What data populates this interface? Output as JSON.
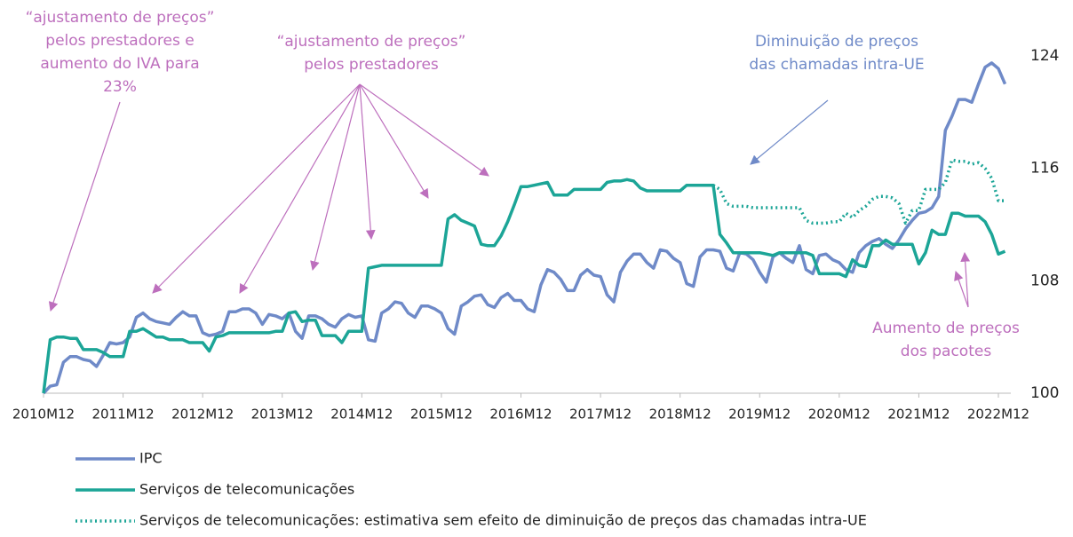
{
  "chart_data": {
    "type": "line",
    "categories": [
      "2010M12",
      null,
      null,
      null,
      null,
      null,
      null,
      null,
      null,
      null,
      null,
      null,
      "2011M12",
      null,
      null,
      null,
      null,
      null,
      null,
      null,
      null,
      null,
      null,
      null,
      "2012M12",
      null,
      null,
      null,
      null,
      null,
      null,
      null,
      null,
      null,
      null,
      null,
      "2013M12",
      null,
      null,
      null,
      null,
      null,
      null,
      null,
      null,
      null,
      null,
      null,
      "2014M12",
      null,
      null,
      null,
      null,
      null,
      null,
      null,
      null,
      null,
      null,
      null,
      "2015M12",
      null,
      null,
      null,
      null,
      null,
      null,
      null,
      null,
      null,
      null,
      null,
      "2016M12",
      null,
      null,
      null,
      null,
      null,
      null,
      null,
      null,
      null,
      null,
      null,
      "2017M12",
      null,
      null,
      null,
      null,
      null,
      null,
      null,
      null,
      null,
      null,
      null,
      "2018M12",
      null,
      null,
      null,
      null,
      null,
      null,
      null,
      null,
      null,
      null,
      null,
      "2019M12",
      null,
      null,
      null,
      null,
      null,
      null,
      null,
      null,
      null,
      null,
      null,
      "2020M12",
      null,
      null,
      null,
      null,
      null,
      null,
      null,
      null,
      null,
      null,
      null,
      "2021M12",
      null,
      null,
      null,
      null,
      null,
      null,
      null,
      null,
      null,
      null,
      null,
      "2022M12",
      null
    ],
    "series": [
      {
        "name": "IPC",
        "color": "#6f8ac8",
        "style": "solid",
        "values": [
          100,
          100.5,
          100.6,
          102.2,
          102.6,
          102.6,
          102.4,
          102.3,
          101.9,
          102.7,
          103.6,
          103.5,
          103.6,
          104.0,
          105.4,
          105.7,
          105.3,
          105.1,
          105.0,
          104.9,
          105.4,
          105.8,
          105.5,
          105.5,
          104.3,
          104.1,
          104.2,
          104.4,
          105.8,
          105.8,
          106.0,
          106.0,
          105.7,
          104.9,
          105.6,
          105.5,
          105.3,
          105.7,
          104.4,
          103.9,
          105.5,
          105.5,
          105.3,
          104.9,
          104.7,
          105.3,
          105.6,
          105.4,
          105.5,
          103.8,
          103.7,
          105.7,
          106.0,
          106.5,
          106.4,
          105.7,
          105.4,
          106.2,
          106.2,
          106.0,
          105.7,
          104.6,
          104.2,
          106.2,
          106.5,
          106.9,
          107.0,
          106.3,
          106.1,
          106.8,
          107.1,
          106.6,
          106.6,
          106.0,
          105.8,
          107.7,
          108.8,
          108.6,
          108.1,
          107.3,
          107.3,
          108.4,
          108.8,
          108.4,
          108.3,
          107.0,
          106.5,
          108.6,
          109.4,
          109.9,
          109.9,
          109.3,
          108.9,
          110.2,
          110.1,
          109.6,
          109.3,
          107.8,
          107.6,
          109.7,
          110.2,
          110.2,
          110.1,
          108.9,
          108.7,
          110.0,
          109.9,
          109.5,
          108.6,
          107.9,
          109.7,
          110.0,
          109.6,
          109.3,
          110.5,
          108.8,
          108.5,
          109.8,
          109.9,
          109.5,
          109.3,
          108.8,
          108.6,
          110.0,
          110.5,
          110.8,
          111.0,
          110.6,
          110.3,
          110.9,
          111.7,
          112.3,
          112.8,
          112.9,
          113.2,
          114.0,
          118.7,
          119.7,
          120.9,
          120.9,
          120.7,
          122.0,
          123.2,
          123.5,
          123.1,
          122.0
        ]
      },
      {
        "name": "Serviços de telecomunicações",
        "color": "#1ca597",
        "style": "solid",
        "values": [
          100,
          103.8,
          104.0,
          104.0,
          103.9,
          103.9,
          103.1,
          103.1,
          103.1,
          102.9,
          102.6,
          102.6,
          102.6,
          104.4,
          104.4,
          104.6,
          104.3,
          104.0,
          104.0,
          103.8,
          103.8,
          103.8,
          103.6,
          103.6,
          103.6,
          103.0,
          104.0,
          104.1,
          104.3,
          104.3,
          104.3,
          104.3,
          104.3,
          104.3,
          104.3,
          104.4,
          104.4,
          105.7,
          105.8,
          105.1,
          105.2,
          105.2,
          104.1,
          104.1,
          104.1,
          103.6,
          104.4,
          104.4,
          104.4,
          108.9,
          109.0,
          109.1,
          109.1,
          109.1,
          109.1,
          109.1,
          109.1,
          109.1,
          109.1,
          109.1,
          109.1,
          112.4,
          112.7,
          112.3,
          112.1,
          111.9,
          110.6,
          110.5,
          110.5,
          111.2,
          112.2,
          113.4,
          114.7,
          114.7,
          114.8,
          114.9,
          115.0,
          114.1,
          114.1,
          114.1,
          114.5,
          114.5,
          114.5,
          114.5,
          114.5,
          115.0,
          115.1,
          115.1,
          115.2,
          115.1,
          114.6,
          114.4,
          114.4,
          114.4,
          114.4,
          114.4,
          114.4,
          114.8,
          114.8,
          114.8,
          114.8,
          114.8,
          111.3,
          110.7,
          110.0,
          110.0,
          110.0,
          110.0,
          110.0,
          109.9,
          109.8,
          110.0,
          110.0,
          110.0,
          110.0,
          110.0,
          109.8,
          108.5,
          108.5,
          108.5,
          108.5,
          108.3,
          109.5,
          109.1,
          109.0,
          110.5,
          110.5,
          110.9,
          110.6,
          110.6,
          110.6,
          110.6,
          109.2,
          110.0,
          111.6,
          111.3,
          111.3,
          112.8,
          112.8,
          112.6,
          112.6,
          112.6,
          112.2,
          111.3,
          109.9,
          110.1
        ]
      },
      {
        "name": "Serviços de telecomunicações: estimativa sem efeito de diminuição de preços das chamadas intra-UE",
        "color": "#1ca597",
        "style": "dotted",
        "values": [
          null,
          null,
          null,
          null,
          null,
          null,
          null,
          null,
          null,
          null,
          null,
          null,
          null,
          null,
          null,
          null,
          null,
          null,
          null,
          null,
          null,
          null,
          null,
          null,
          null,
          null,
          null,
          null,
          null,
          null,
          null,
          null,
          null,
          null,
          null,
          null,
          null,
          null,
          null,
          null,
          null,
          null,
          null,
          null,
          null,
          null,
          null,
          null,
          null,
          null,
          null,
          null,
          null,
          null,
          null,
          null,
          null,
          null,
          null,
          null,
          null,
          null,
          null,
          null,
          null,
          null,
          null,
          null,
          null,
          null,
          null,
          null,
          null,
          null,
          null,
          null,
          null,
          null,
          null,
          null,
          null,
          null,
          null,
          null,
          null,
          null,
          null,
          null,
          null,
          null,
          null,
          null,
          null,
          null,
          null,
          null,
          null,
          null,
          null,
          null,
          null,
          114.8,
          114.5,
          113.5,
          113.3,
          113.3,
          113.3,
          113.2,
          113.2,
          113.2,
          113.2,
          113.2,
          113.2,
          113.2,
          113.2,
          112.3,
          112.1,
          112.1,
          112.1,
          112.2,
          112.2,
          112.8,
          112.5,
          113.0,
          113.3,
          113.8,
          114.0,
          114.0,
          113.9,
          113.5,
          112.1,
          113.0,
          113.0,
          114.5,
          114.5,
          114.5,
          115.0,
          116.6,
          116.5,
          116.5,
          116.3,
          116.4,
          116.0,
          115.3,
          113.7,
          113.7
        ]
      }
    ],
    "ylim": [
      100,
      124
    ],
    "yticks": [
      100,
      108,
      116,
      124
    ],
    "y_axis_side": "right",
    "grid": false,
    "annotations": [
      {
        "lines": [
          "“ajustamento de preços”",
          "pelos prestadores e",
          "aumento do IVA para",
          "23%"
        ],
        "color": "#bd6fbd"
      },
      {
        "lines": [
          "“ajustamento de preços”",
          "pelos prestadores"
        ],
        "color": "#bd6fbd"
      },
      {
        "lines": [
          "Diminuição de preços",
          "das chamadas intra-UE"
        ],
        "color": "#6f8ac8"
      },
      {
        "lines": [
          "Aumento de preços",
          "dos pacotes"
        ],
        "color": "#bd6fbd"
      }
    ]
  }
}
